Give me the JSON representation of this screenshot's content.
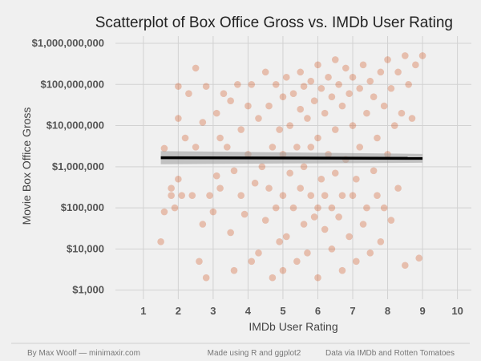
{
  "chart_data": {
    "type": "scatter",
    "title": "Scatterplot of Box Office Gross vs. IMDb User Rating",
    "xlabel": "IMDb User Rating",
    "ylabel": "Movie Box Office Gross",
    "x_ticks": [
      "1",
      "2",
      "3",
      "4",
      "5",
      "6",
      "7",
      "8",
      "9",
      "10"
    ],
    "y_ticks": [
      "$1,000",
      "$10,000",
      "$100,000",
      "$1,000,000",
      "$10,000,000",
      "$100,000,000",
      "$1,000,000,000"
    ],
    "xlim": [
      0.2,
      10.4
    ],
    "ylim": [
      600,
      1500000000
    ],
    "y_scale": "log10",
    "grid": true,
    "point_color": "#cc3d00",
    "regression_color": "#000000",
    "confidence_band_color": "#9a9a9a",
    "regression_line": {
      "x": [
        1.5,
        9.0
      ],
      "y": [
        1650000,
        1600000
      ]
    },
    "confidence_band": {
      "x": [
        1.5,
        9.0
      ],
      "lower": [
        1150000,
        1250000
      ],
      "upper": [
        2400000,
        2050000
      ]
    },
    "series": [
      {
        "values": [
          [
            1.5,
            15000
          ],
          [
            1.6,
            80000
          ],
          [
            1.6,
            2800000
          ],
          [
            1.8,
            300000
          ],
          [
            1.8,
            200000
          ],
          [
            1.9,
            100000
          ],
          [
            2.0,
            500000
          ],
          [
            2.0,
            90000000
          ],
          [
            2.0,
            15000000
          ],
          [
            2.1,
            200000
          ],
          [
            2.2,
            5000000
          ],
          [
            2.3,
            60000000
          ],
          [
            2.4,
            200000
          ],
          [
            2.5,
            250000000
          ],
          [
            2.5,
            3000000
          ],
          [
            2.6,
            5000
          ],
          [
            2.7,
            12000000
          ],
          [
            2.7,
            40000
          ],
          [
            2.8,
            90000000
          ],
          [
            2.8,
            2000
          ],
          [
            2.9,
            200000
          ],
          [
            3.0,
            80000
          ],
          [
            3.1,
            600000
          ],
          [
            3.1,
            20000000
          ],
          [
            3.2,
            5000000
          ],
          [
            3.2,
            300000
          ],
          [
            3.3,
            60000000
          ],
          [
            3.4,
            3000000
          ],
          [
            3.5,
            25000
          ],
          [
            3.5,
            40000000
          ],
          [
            3.6,
            800000
          ],
          [
            3.6,
            3000
          ],
          [
            3.7,
            100000000
          ],
          [
            3.8,
            8000000
          ],
          [
            3.8,
            200000
          ],
          [
            3.9,
            70000
          ],
          [
            4.0,
            2000000
          ],
          [
            4.0,
            30000000
          ],
          [
            4.1,
            5000
          ],
          [
            4.1,
            100000000
          ],
          [
            4.2,
            400000
          ],
          [
            4.3,
            15000000
          ],
          [
            4.3,
            8000
          ],
          [
            4.4,
            1000000
          ],
          [
            4.5,
            200000000
          ],
          [
            4.5,
            50000
          ],
          [
            4.6,
            300000
          ],
          [
            4.6,
            30000000
          ],
          [
            4.7,
            2000
          ],
          [
            4.7,
            3000000
          ],
          [
            4.8,
            100000000
          ],
          [
            4.8,
            100000
          ],
          [
            4.9,
            15000
          ],
          [
            4.9,
            8000000
          ],
          [
            5.0,
            50000000
          ],
          [
            5.0,
            200000
          ],
          [
            5.0,
            2000000
          ],
          [
            5.0,
            3000
          ],
          [
            5.1,
            150000000
          ],
          [
            5.1,
            20000
          ],
          [
            5.2,
            10000000
          ],
          [
            5.2,
            700000
          ],
          [
            5.3,
            60000000
          ],
          [
            5.3,
            100000
          ],
          [
            5.4,
            5000
          ],
          [
            5.4,
            3000000
          ],
          [
            5.5,
            200000000
          ],
          [
            5.5,
            300000
          ],
          [
            5.5,
            25000000
          ],
          [
            5.6,
            40000
          ],
          [
            5.6,
            1000000
          ],
          [
            5.6,
            90000000
          ],
          [
            5.7,
            8000
          ],
          [
            5.7,
            15000000
          ],
          [
            5.8,
            120000000
          ],
          [
            5.8,
            200000
          ],
          [
            5.8,
            3000000
          ],
          [
            5.9,
            60000
          ],
          [
            5.9,
            40000000
          ],
          [
            6.0,
            300000000
          ],
          [
            6.0,
            100000
          ],
          [
            6.0,
            5000000
          ],
          [
            6.0,
            2000
          ],
          [
            6.1,
            80000000
          ],
          [
            6.1,
            500000
          ],
          [
            6.2,
            20000000
          ],
          [
            6.2,
            30000
          ],
          [
            6.2,
            200000
          ],
          [
            6.3,
            150000000
          ],
          [
            6.3,
            2000000
          ],
          [
            6.4,
            10000
          ],
          [
            6.4,
            50000000
          ],
          [
            6.4,
            100000
          ],
          [
            6.5,
            400000000
          ],
          [
            6.5,
            700000
          ],
          [
            6.5,
            8000000
          ],
          [
            6.6,
            60000
          ],
          [
            6.6,
            100000000
          ],
          [
            6.7,
            3000
          ],
          [
            6.7,
            200000
          ],
          [
            6.7,
            30000000
          ],
          [
            6.8,
            250000000
          ],
          [
            6.8,
            1500000
          ],
          [
            6.9,
            20000
          ],
          [
            6.9,
            60000000
          ],
          [
            7.0,
            200000
          ],
          [
            7.0,
            10000000
          ],
          [
            7.0,
            150000000
          ],
          [
            7.1,
            5000
          ],
          [
            7.1,
            500000
          ],
          [
            7.2,
            80000000
          ],
          [
            7.2,
            3000000
          ],
          [
            7.3,
            40000
          ],
          [
            7.3,
            300000000
          ],
          [
            7.4,
            100000
          ],
          [
            7.4,
            20000000
          ],
          [
            7.5,
            8000
          ],
          [
            7.5,
            120000000
          ],
          [
            7.6,
            800000
          ],
          [
            7.6,
            50000000
          ],
          [
            7.7,
            200000
          ],
          [
            7.7,
            5000000
          ],
          [
            7.8,
            200000000
          ],
          [
            7.8,
            15000
          ],
          [
            7.9,
            30000000
          ],
          [
            7.9,
            100000
          ],
          [
            8.0,
            400000000
          ],
          [
            8.0,
            2000000
          ],
          [
            8.1,
            50000
          ],
          [
            8.1,
            80000000
          ],
          [
            8.2,
            10000000
          ],
          [
            8.3,
            200000000
          ],
          [
            8.3,
            300000
          ],
          [
            8.4,
            20000000
          ],
          [
            8.5,
            500000000
          ],
          [
            8.5,
            4000
          ],
          [
            8.6,
            100000000
          ],
          [
            8.7,
            15000000
          ],
          [
            8.8,
            300000000
          ],
          [
            8.9,
            6000
          ],
          [
            9.0,
            500000000
          ]
        ]
      }
    ]
  },
  "footer": {
    "credit": "By Max Woolf — minimaxir.com",
    "tools": "Made using R and ggplot2",
    "source": "Data via IMDb and Rotten Tomatoes"
  }
}
